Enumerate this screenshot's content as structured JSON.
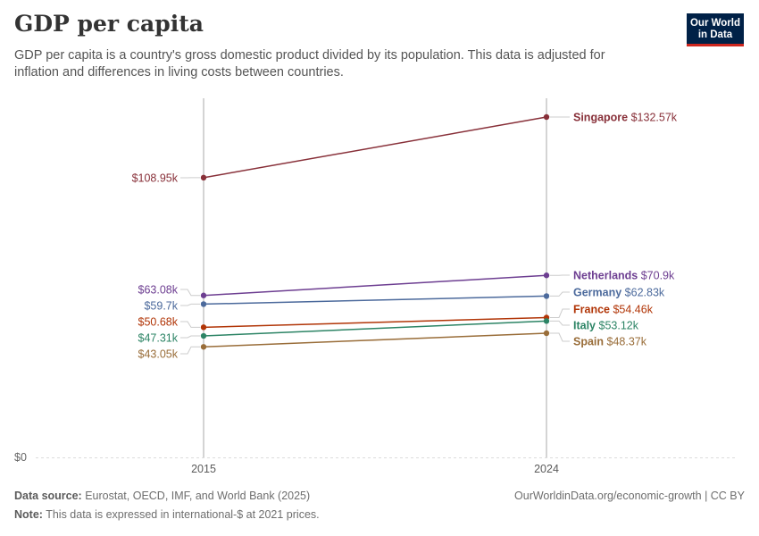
{
  "header": {
    "title": "GDP per capita",
    "subtitle": "GDP per capita is a country's gross domestic product divided by its population. This data is adjusted for inflation and differences in living costs between countries.",
    "logo_line1": "Our World",
    "logo_line2": "in Data"
  },
  "footer": {
    "source_label": "Data source:",
    "source_text": "Eurostat, OECD, IMF, and World Bank (2025)",
    "credit": "OurWorldinData.org/economic-growth | CC BY",
    "note_label": "Note:",
    "note_text": "This data is expressed in international-$ at 2021 prices."
  },
  "chart_data": {
    "type": "line",
    "x": [
      "2015",
      "2024"
    ],
    "y_tick_label": "$0",
    "series": [
      {
        "name": "Singapore",
        "color": "#883039",
        "values": [
          108950,
          132570
        ],
        "start_label": "$108.95k",
        "end_label": "$132.57k"
      },
      {
        "name": "Netherlands",
        "color": "#6d3e91",
        "values": [
          63080,
          70900
        ],
        "start_label": "$63.08k",
        "end_label": "$70.9k"
      },
      {
        "name": "Germany",
        "color": "#4c6a9c",
        "values": [
          59700,
          62830
        ],
        "start_label": "$59.7k",
        "end_label": "$62.83k"
      },
      {
        "name": "France",
        "color": "#b13507",
        "values": [
          50680,
          54460
        ],
        "start_label": "$50.68k",
        "end_label": "$54.46k"
      },
      {
        "name": "Italy",
        "color": "#38aaba",
        "values": [
          47310,
          53120
        ],
        "start_label": "$47.31k",
        "end_label": "$53.12k"
      },
      {
        "name": "Spain",
        "color": "#996d39",
        "values": [
          43050,
          48370
        ],
        "start_label": "$43.05k",
        "end_label": "$48.37k"
      }
    ],
    "colors_override": {
      "Italy": "#2c8465"
    },
    "ylim": [
      0,
      132570
    ]
  }
}
